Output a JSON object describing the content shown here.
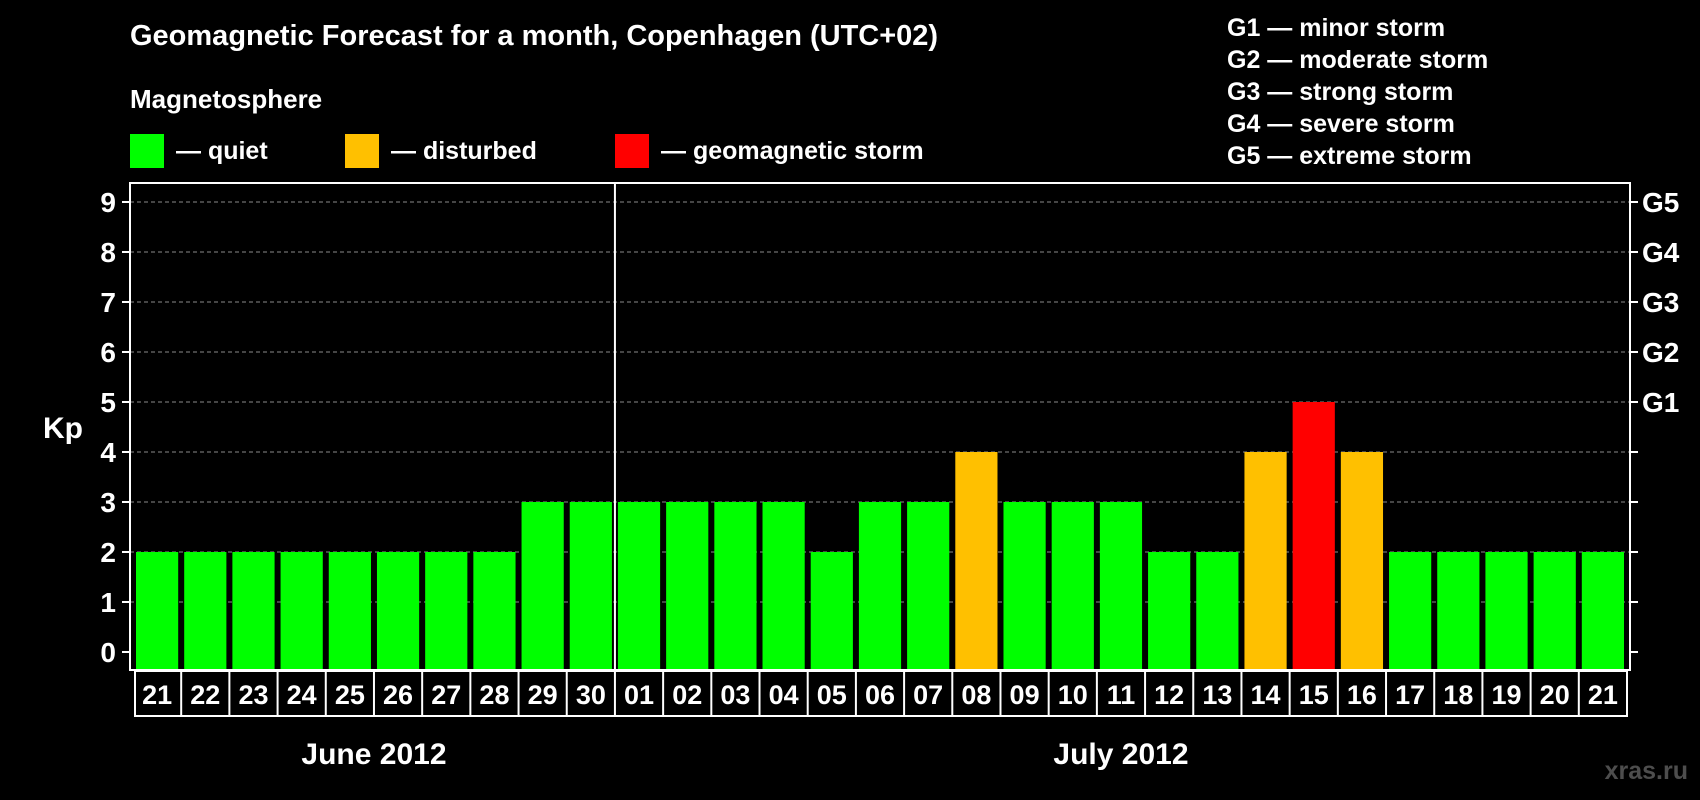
{
  "chart_data": {
    "type": "bar",
    "title": "Geomagnetic Forecast for a month, Copenhagen (UTC+02)",
    "subtitle": "Magnetosphere",
    "ylabel": "Kp",
    "ylim": [
      0,
      9
    ],
    "yticks": [
      "0",
      "1",
      "2",
      "3",
      "4",
      "5",
      "6",
      "7",
      "8",
      "9"
    ],
    "right_ticks": [
      {
        "kp": 5,
        "label": "G1"
      },
      {
        "kp": 6,
        "label": "G2"
      },
      {
        "kp": 7,
        "label": "G3"
      },
      {
        "kp": 8,
        "label": "G4"
      },
      {
        "kp": 9,
        "label": "G5"
      }
    ],
    "legend": [
      {
        "label": "— quiet",
        "color": "#00ff00"
      },
      {
        "label": "— disturbed",
        "color": "#ffc000"
      },
      {
        "label": "— geomagnetic storm",
        "color": "#ff0000"
      }
    ],
    "storm_scale": [
      "G1 — minor storm",
      "G2 — moderate storm",
      "G3 — strong storm",
      "G4 — severe storm",
      "G5 — extreme storm"
    ],
    "categories": [
      "21",
      "22",
      "23",
      "24",
      "25",
      "26",
      "27",
      "28",
      "29",
      "30",
      "01",
      "02",
      "03",
      "04",
      "05",
      "06",
      "07",
      "08",
      "09",
      "10",
      "11",
      "12",
      "13",
      "14",
      "15",
      "16",
      "17",
      "18",
      "19",
      "20",
      "21"
    ],
    "values": [
      2,
      2,
      2,
      2,
      2,
      2,
      2,
      2,
      3,
      3,
      3,
      3,
      3,
      3,
      2,
      3,
      3,
      4,
      3,
      3,
      3,
      2,
      2,
      4,
      5,
      4,
      2,
      2,
      2,
      2,
      2
    ],
    "months": [
      {
        "label": "June 2012",
        "start": 0,
        "end": 9
      },
      {
        "label": "July 2012",
        "start": 10,
        "end": 30
      }
    ],
    "colors": {
      "quiet": "#00ff00",
      "disturbed": "#ffc000",
      "storm": "#ff0000"
    }
  },
  "watermark": "xras.ru"
}
